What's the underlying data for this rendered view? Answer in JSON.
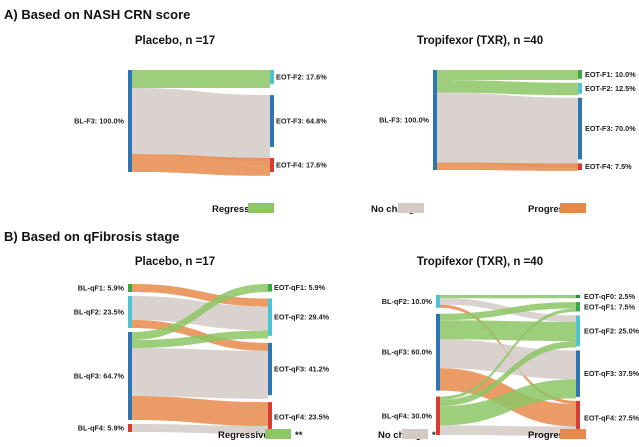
{
  "sections": [
    {
      "title": "A) Based on NASH CRN score"
    },
    {
      "title": "B) Based on qFibrosis stage"
    }
  ],
  "colors": {
    "regressive": "#8CC665",
    "no_change": "#D3CAC6",
    "progressive": "#E8894A"
  },
  "legends": [
    {
      "items": [
        {
          "label": "Regressive",
          "mark": "",
          "type": "regressive"
        },
        {
          "label": "No change",
          "mark": "",
          "type": "no_change"
        },
        {
          "label": "Progressive",
          "mark": "",
          "type": "progressive"
        }
      ]
    },
    {
      "items": [
        {
          "label": "Regressive",
          "mark": "**",
          "type": "regressive"
        },
        {
          "label": "No change",
          "mark": "*",
          "type": "no_change"
        },
        {
          "label": "Progressive",
          "mark": "",
          "type": "progressive"
        }
      ]
    }
  ],
  "chart_data": [
    {
      "type": "sankey",
      "title": "Placebo, n =17",
      "nodes_left": [
        {
          "label": "BL-F3: 100.0%",
          "value": 100.0,
          "color": "#2E75B6"
        }
      ],
      "nodes_right": [
        {
          "label": "EOT-F2: 17.6%",
          "value": 17.6,
          "color": "#4DC3D4"
        },
        {
          "label": "EOT-F3: 64.8%",
          "value": 64.8,
          "color": "#2E75B6"
        },
        {
          "label": "EOT-F4: 17.6%",
          "value": 17.6,
          "color": "#D93A32"
        }
      ],
      "flows": [
        {
          "from": 0,
          "to": 0,
          "value": 17.6,
          "type": "regressive"
        },
        {
          "from": 0,
          "to": 1,
          "value": 64.8,
          "type": "no_change"
        },
        {
          "from": 0,
          "to": 2,
          "value": 17.6,
          "type": "progressive"
        }
      ]
    },
    {
      "type": "sankey",
      "title": "Tropifexor (TXR), n =40",
      "nodes_left": [
        {
          "label": "BL-F3: 100.0%",
          "value": 100.0,
          "color": "#2E75B6"
        }
      ],
      "nodes_right": [
        {
          "label": "EOT-F1: 10.0%",
          "value": 10.0,
          "color": "#3AA845"
        },
        {
          "label": "EOT-F2: 12.5%",
          "value": 12.5,
          "color": "#4DC3D4"
        },
        {
          "label": "EOT-F3: 70.0%",
          "value": 70.0,
          "color": "#2E75B6"
        },
        {
          "label": "EOT-F4: 7.5%",
          "value": 7.5,
          "color": "#D93A32"
        }
      ],
      "flows": [
        {
          "from": 0,
          "to": 0,
          "value": 10.0,
          "type": "regressive"
        },
        {
          "from": 0,
          "to": 1,
          "value": 12.5,
          "type": "regressive"
        },
        {
          "from": 0,
          "to": 2,
          "value": 70.0,
          "type": "no_change"
        },
        {
          "from": 0,
          "to": 3,
          "value": 7.5,
          "type": "progressive"
        }
      ]
    },
    {
      "type": "sankey",
      "title": "Placebo, n =17",
      "nodes_left": [
        {
          "label": "BL-qF1: 5.9%",
          "value": 5.9,
          "color": "#3AA845"
        },
        {
          "label": "BL-qF2: 23.5%",
          "value": 23.5,
          "color": "#4DC3D4"
        },
        {
          "label": "BL-qF3: 64.7%",
          "value": 64.7,
          "color": "#2E75B6"
        },
        {
          "label": "BL-qF4: 5.9%",
          "value": 5.9,
          "color": "#D93A32"
        }
      ],
      "nodes_right": [
        {
          "label": "EOT-qF1: 5.9%",
          "value": 5.9,
          "color": "#3AA845"
        },
        {
          "label": "EOT-qF2: 29.4%",
          "value": 29.4,
          "color": "#4DC3D4"
        },
        {
          "label": "EOT-qF3: 41.2%",
          "value": 41.2,
          "color": "#2E75B6"
        },
        {
          "label": "EOT-qF4: 23.5%",
          "value": 23.5,
          "color": "#D93A32"
        }
      ],
      "flows": [
        {
          "from": 0,
          "to": 1,
          "value": 5.9,
          "type": "progressive"
        },
        {
          "from": 1,
          "to": 1,
          "value": 17.6,
          "type": "no_change"
        },
        {
          "from": 1,
          "to": 2,
          "value": 5.9,
          "type": "progressive"
        },
        {
          "from": 2,
          "to": 0,
          "value": 5.9,
          "type": "regressive"
        },
        {
          "from": 2,
          "to": 1,
          "value": 5.9,
          "type": "regressive"
        },
        {
          "from": 2,
          "to": 2,
          "value": 35.3,
          "type": "no_change"
        },
        {
          "from": 2,
          "to": 3,
          "value": 17.6,
          "type": "progressive"
        },
        {
          "from": 3,
          "to": 3,
          "value": 5.9,
          "type": "no_change"
        }
      ]
    },
    {
      "type": "sankey",
      "title": "Tropifexor (TXR), n =40",
      "nodes_left": [
        {
          "label": "BL-qF2: 10.0%",
          "value": 10.0,
          "color": "#4DC3D4"
        },
        {
          "label": "BL-qF3: 60.0%",
          "value": 60.0,
          "color": "#2E75B6"
        },
        {
          "label": "BL-qF4: 30.0%",
          "value": 30.0,
          "color": "#D93A32"
        }
      ],
      "nodes_right": [
        {
          "label": "EOT-qF0: 2.5%",
          "value": 2.5,
          "color": "#2E8B3A"
        },
        {
          "label": "EOT-qF1: 7.5%",
          "value": 7.5,
          "color": "#3AA845"
        },
        {
          "label": "EOT-qF2: 25.0%",
          "value": 25.0,
          "color": "#4DC3D4"
        },
        {
          "label": "EOT-qF3: 37.5%",
          "value": 37.5,
          "color": "#2E75B6"
        },
        {
          "label": "EOT-qF4: 27.5%",
          "value": 27.5,
          "color": "#D93A32"
        }
      ],
      "flows": [
        {
          "from": 0,
          "to": 0,
          "value": 2.5,
          "type": "regressive"
        },
        {
          "from": 0,
          "to": 2,
          "value": 5.0,
          "type": "no_change"
        },
        {
          "from": 0,
          "to": 4,
          "value": 2.5,
          "type": "progressive"
        },
        {
          "from": 1,
          "to": 1,
          "value": 5.0,
          "type": "regressive"
        },
        {
          "from": 1,
          "to": 2,
          "value": 15.0,
          "type": "regressive"
        },
        {
          "from": 1,
          "to": 3,
          "value": 22.5,
          "type": "no_change"
        },
        {
          "from": 1,
          "to": 4,
          "value": 17.5,
          "type": "progressive"
        },
        {
          "from": 2,
          "to": 1,
          "value": 2.5,
          "type": "regressive"
        },
        {
          "from": 2,
          "to": 2,
          "value": 5.0,
          "type": "regressive"
        },
        {
          "from": 2,
          "to": 3,
          "value": 15.0,
          "type": "regressive"
        },
        {
          "from": 2,
          "to": 4,
          "value": 7.5,
          "type": "no_change"
        }
      ]
    }
  ]
}
